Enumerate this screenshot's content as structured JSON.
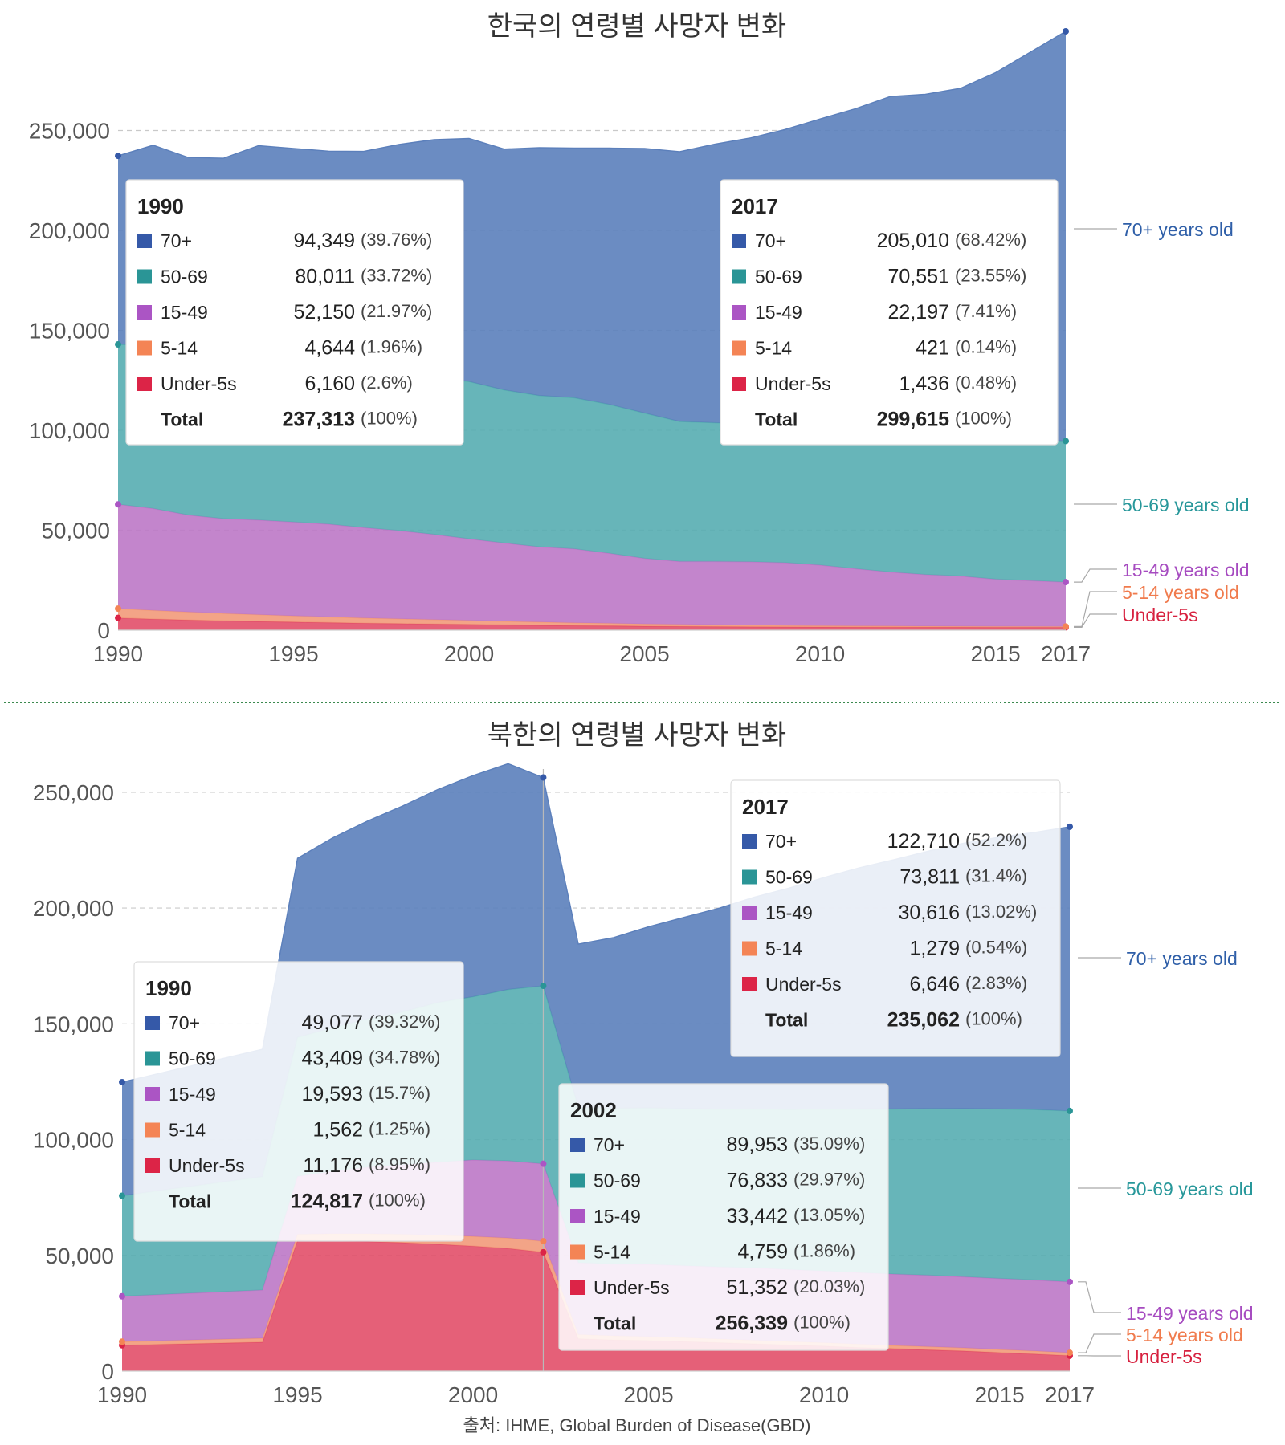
{
  "footer": {
    "source": "출처: IHME, Global Burden of Disease(GBD)"
  },
  "colors": {
    "c70": "#5b7fbb",
    "c5069": "#56adb1",
    "c1549": "#bd78c7",
    "c514": "#f29a7a",
    "cu5": "#e24f69",
    "label70": "#2f5fa8",
    "label5069": "#27979a",
    "label1549": "#a64bc0",
    "label514": "#f07b4d",
    "labelu5": "#d7213f",
    "sw70": "#3559a8",
    "sw5069": "#2a9596",
    "sw1549": "#ab55c4",
    "sw514": "#f48455",
    "swu5": "#dc2447"
  },
  "chart_data": [
    {
      "type": "area",
      "stacked": true,
      "title": "한국의 연령별 사망자 변화",
      "x": [
        1990,
        1991,
        1992,
        1993,
        1994,
        1995,
        1996,
        1997,
        1998,
        1999,
        2000,
        2001,
        2002,
        2003,
        2004,
        2005,
        2006,
        2007,
        2008,
        2009,
        2010,
        2011,
        2012,
        2013,
        2014,
        2015,
        2016,
        2017
      ],
      "xlim": [
        1990,
        2017
      ],
      "xticks": [
        "1990",
        "1995",
        "2000",
        "2005",
        "2010",
        "2015",
        "2017"
      ],
      "ylim": [
        0,
        300000
      ],
      "yticks": [
        "0",
        "50,000",
        "100,000",
        "150,000",
        "200,000",
        "250,000"
      ],
      "series": [
        {
          "name": "Under-5s",
          "label": "Under-5s",
          "values": [
            6160,
            5600,
            5100,
            4700,
            4400,
            4100,
            3800,
            3500,
            3300,
            3100,
            2900,
            2700,
            2500,
            2300,
            2200,
            2000,
            1900,
            1800,
            1700,
            1650,
            1600,
            1550,
            1520,
            1500,
            1480,
            1460,
            1450,
            1436
          ]
        },
        {
          "name": "5-14",
          "label": "5-14 years old",
          "values": [
            4644,
            4300,
            4000,
            3700,
            3400,
            3100,
            2850,
            2600,
            2400,
            2200,
            2000,
            1800,
            1600,
            1400,
            1250,
            1100,
            980,
            880,
            800,
            720,
            660,
            600,
            560,
            520,
            490,
            460,
            440,
            421
          ]
        },
        {
          "name": "15-49",
          "label": "15-49 years old",
          "values": [
            52150,
            51000,
            48500,
            47400,
            47300,
            46900,
            46400,
            45200,
            44100,
            42600,
            40800,
            39100,
            37600,
            37000,
            35000,
            32800,
            31500,
            31700,
            31700,
            31400,
            30300,
            28600,
            27000,
            25800,
            25100,
            23600,
            22900,
            22197
          ]
        },
        {
          "name": "50-69",
          "label": "50-69 years old",
          "values": [
            80011,
            81500,
            80500,
            80000,
            79500,
            79000,
            78900,
            78800,
            78500,
            78400,
            78700,
            76600,
            75700,
            75600,
            74500,
            72700,
            70000,
            69400,
            69000,
            68900,
            69400,
            69700,
            70000,
            70500,
            70700,
            70600,
            70600,
            70551
          ]
        },
        {
          "name": "70+",
          "label": "70+ years old",
          "values": [
            94349,
            100200,
            98400,
            100300,
            107800,
            107900,
            107700,
            109400,
            114700,
            119100,
            121600,
            120500,
            124000,
            124900,
            128200,
            132400,
            135000,
            139400,
            143000,
            147800,
            153800,
            160400,
            167900,
            169800,
            173300,
            182800,
            193900,
            205010
          ]
        }
      ],
      "tooltips": [
        {
          "year": "1990",
          "rows": [
            {
              "key": "70+",
              "value": "94,349",
              "pct": "(39.76%)"
            },
            {
              "key": "50-69",
              "value": "80,011",
              "pct": "(33.72%)"
            },
            {
              "key": "15-49",
              "value": "52,150",
              "pct": "(21.97%)"
            },
            {
              "key": "5-14",
              "value": "4,644",
              "pct": "(1.96%)"
            },
            {
              "key": "Under-5s",
              "value": "6,160",
              "pct": "(2.6%)"
            }
          ],
          "total_label": "Total",
          "total": "237,313",
          "total_pct": "(100%)"
        },
        {
          "year": "2017",
          "rows": [
            {
              "key": "70+",
              "value": "205,010",
              "pct": "(68.42%)"
            },
            {
              "key": "50-69",
              "value": "70,551",
              "pct": "(23.55%)"
            },
            {
              "key": "15-49",
              "value": "22,197",
              "pct": "(7.41%)"
            },
            {
              "key": "5-14",
              "value": "421",
              "pct": "(0.14%)"
            },
            {
              "key": "Under-5s",
              "value": "1,436",
              "pct": "(0.48%)"
            }
          ],
          "total_label": "Total",
          "total": "299,615",
          "total_pct": "(100%)"
        }
      ]
    },
    {
      "type": "area",
      "stacked": true,
      "title": "북한의 연령별 사망자 변화",
      "x": [
        1990,
        1994,
        1995,
        1996,
        1997,
        1998,
        1999,
        2000,
        2001,
        2002,
        2003,
        2004,
        2005,
        2006,
        2007,
        2008,
        2009,
        2010,
        2011,
        2012,
        2013,
        2014,
        2015,
        2016,
        2017
      ],
      "xlim": [
        1990,
        2017
      ],
      "xticks": [
        "1990",
        "1995",
        "2000",
        "2005",
        "2010",
        "2015",
        "2017"
      ],
      "ylim": [
        0,
        260000
      ],
      "yticks": [
        "0",
        "50,000",
        "100,000",
        "150,000",
        "200,000",
        "250,000"
      ],
      "series": [
        {
          "name": "Under-5s",
          "label": "Under-5s",
          "values": [
            11176,
            12500,
            56500,
            56300,
            56000,
            55500,
            54800,
            54000,
            53000,
            51352,
            14000,
            13500,
            13200,
            12800,
            12300,
            11800,
            11300,
            10800,
            10200,
            9700,
            9200,
            8700,
            8000,
            7400,
            6646
          ]
        },
        {
          "name": "5-14",
          "label": "5-14 years old",
          "values": [
            1562,
            1700,
            2600,
            3000,
            3300,
            3600,
            3900,
            4200,
            4500,
            4759,
            1800,
            1750,
            1700,
            1650,
            1600,
            1550,
            1500,
            1480,
            1450,
            1400,
            1380,
            1350,
            1320,
            1300,
            1279
          ]
        },
        {
          "name": "15-49",
          "label": "15-49 years old",
          "values": [
            19593,
            20800,
            25000,
            27000,
            28800,
            30000,
            31500,
            33000,
            33300,
            33442,
            31000,
            31000,
            31200,
            31100,
            31100,
            31300,
            31100,
            31000,
            30900,
            30800,
            30800,
            30700,
            30700,
            30650,
            30616
          ]
        },
        {
          "name": "50-69",
          "label": "50-69 years old",
          "values": [
            43409,
            49000,
            60000,
            62000,
            64000,
            66000,
            69000,
            70500,
            74000,
            76833,
            67000,
            67200,
            67500,
            67800,
            68100,
            68500,
            69000,
            69800,
            70600,
            71300,
            72000,
            72600,
            73200,
            73600,
            73811
          ]
        },
        {
          "name": "70+",
          "label": "70+ years old",
          "values": [
            49077,
            55000,
            77400,
            82000,
            85500,
            89000,
            92000,
            95500,
            97500,
            89953,
            70600,
            73800,
            78300,
            82600,
            86800,
            91500,
            95700,
            100100,
            104200,
            107700,
            111300,
            114700,
            117400,
            119700,
            122710
          ]
        }
      ],
      "tooltips": [
        {
          "year": "1990",
          "rows": [
            {
              "key": "70+",
              "value": "49,077",
              "pct": "(39.32%)"
            },
            {
              "key": "50-69",
              "value": "43,409",
              "pct": "(34.78%)"
            },
            {
              "key": "15-49",
              "value": "19,593",
              "pct": "(15.7%)"
            },
            {
              "key": "5-14",
              "value": "1,562",
              "pct": "(1.25%)"
            },
            {
              "key": "Under-5s",
              "value": "11,176",
              "pct": "(8.95%)"
            }
          ],
          "total_label": "Total",
          "total": "124,817",
          "total_pct": "(100%)"
        },
        {
          "year": "2017",
          "rows": [
            {
              "key": "70+",
              "value": "122,710",
              "pct": "(52.2%)"
            },
            {
              "key": "50-69",
              "value": "73,811",
              "pct": "(31.4%)"
            },
            {
              "key": "15-49",
              "value": "30,616",
              "pct": "(13.02%)"
            },
            {
              "key": "5-14",
              "value": "1,279",
              "pct": "(0.54%)"
            },
            {
              "key": "Under-5s",
              "value": "6,646",
              "pct": "(2.83%)"
            }
          ],
          "total_label": "Total",
          "total": "235,062",
          "total_pct": "(100%)"
        },
        {
          "year": "2002",
          "rows": [
            {
              "key": "70+",
              "value": "89,953",
              "pct": "(35.09%)"
            },
            {
              "key": "50-69",
              "value": "76,833",
              "pct": "(29.97%)"
            },
            {
              "key": "15-49",
              "value": "33,442",
              "pct": "(13.05%)"
            },
            {
              "key": "5-14",
              "value": "4,759",
              "pct": "(1.86%)"
            },
            {
              "key": "Under-5s",
              "value": "51,352",
              "pct": "(20.03%)"
            }
          ],
          "total_label": "Total",
          "total": "256,339",
          "total_pct": "(100%)"
        }
      ]
    }
  ]
}
